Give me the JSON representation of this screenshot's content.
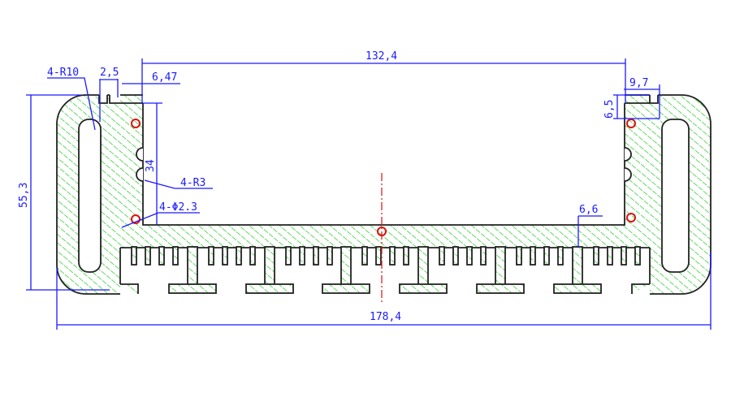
{
  "drawing": {
    "colors": {
      "outline": "#222222",
      "hatch": "#3ccf3c",
      "dimension": "#1a1aff",
      "hole": "#e01010",
      "centerline": "#e01010"
    },
    "dimensions": {
      "inner_width": "132,4",
      "overall_width": "178,4",
      "overall_height": "55,3",
      "wall_height": "34",
      "corner_radius": "4-R10",
      "slot_width": "2,5",
      "wall_offset": "6,47",
      "right_offset": "9,7",
      "top_depth": "6,5",
      "groove_radius": "4-R3",
      "hole_diameter": "4-Φ2.3",
      "base_thickness": "6,6"
    }
  }
}
